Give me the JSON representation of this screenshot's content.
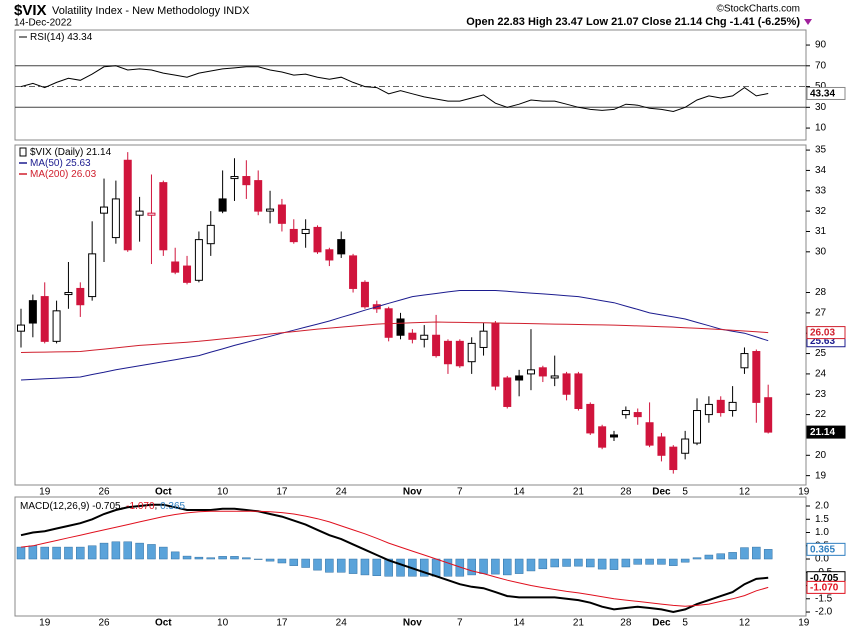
{
  "header": {
    "symbol": "$VIX",
    "name": "Volatility Index - New Methodology INDX",
    "date": "14-Dec-2022",
    "quote": "Open 22.83 High 23.47 Low 21.07 Close 21.14 Chg -1.41 (-6.25%)",
    "credit": "©StockCharts.com"
  },
  "chart_data": [
    {
      "type": "line",
      "ylim": [
        -1.5,
        104.5
      ],
      "yticks": [
        10,
        30,
        50,
        70,
        90
      ],
      "levels": [
        70,
        30
      ],
      "midline": 50,
      "series": [
        {
          "name": "RSI(14)",
          "color": "#000000",
          "values": [
            50,
            53,
            49,
            54,
            58,
            56,
            62,
            69,
            70,
            66,
            67,
            66,
            63,
            61,
            59,
            63,
            65,
            67,
            68,
            69,
            69,
            66,
            64,
            61,
            62,
            59,
            57,
            59,
            54,
            50,
            49,
            43,
            46,
            43,
            40,
            38,
            36,
            36,
            39,
            42,
            34,
            30,
            33,
            37,
            36,
            36,
            33,
            30,
            28,
            27,
            28,
            33,
            32,
            29,
            28,
            26,
            30,
            37,
            41,
            39,
            41,
            49,
            41,
            43.34,
            null,
            null,
            null
          ]
        }
      ]
    },
    {
      "type": "candlestick",
      "name": "$VIX (Daily)",
      "ylim": [
        18.54,
        35.25
      ],
      "yticks": [
        19,
        20,
        22,
        23,
        24,
        25,
        26,
        27,
        28,
        30,
        31,
        32,
        33,
        34,
        35
      ],
      "colors": {
        "up": "#000000",
        "down": "#d0143c"
      },
      "categories": [
        null,
        null,
        "19",
        null,
        null,
        null,
        null,
        "26",
        null,
        null,
        null,
        null,
        "Oct",
        null,
        null,
        null,
        null,
        "10",
        null,
        null,
        null,
        null,
        "17",
        null,
        null,
        null,
        null,
        "24",
        null,
        null,
        null,
        null,
        null,
        "Nov",
        null,
        null,
        null,
        "7",
        null,
        null,
        null,
        null,
        "14",
        null,
        null,
        null,
        null,
        "21",
        null,
        null,
        null,
        "28",
        null,
        null,
        "Dec",
        null,
        "5",
        null,
        null,
        null,
        null,
        "12",
        null,
        null,
        null,
        null,
        "19"
      ],
      "open": [
        26.1,
        27.6,
        27.8,
        25.6,
        27.9,
        28.2,
        27.8,
        31.9,
        30.7,
        34.5,
        31.8,
        31.8,
        33.4,
        29.5,
        29.3,
        28.6,
        30.4,
        32.6,
        33.6,
        33.7,
        33.5,
        32.0,
        32.3,
        31.1,
        30.9,
        31.2,
        30.1,
        30.6,
        29.8,
        28.5,
        27.4,
        27.2,
        26.7,
        26.0,
        25.7,
        25.9,
        25.6,
        25.6,
        24.6,
        25.3,
        26.5,
        23.8,
        23.9,
        24.0,
        24.3,
        23.8,
        24.0,
        24.0,
        22.5,
        21.4,
        21.0,
        22.0,
        22.1,
        21.6,
        20.9,
        20.4,
        20.1,
        20.6,
        22.0,
        22.7,
        22.2,
        24.3,
        25.1,
        22.83,
        null,
        null,
        null
      ],
      "high": [
        27.2,
        27.9,
        28.5,
        27.6,
        29.5,
        28.5,
        31.5,
        33.6,
        33.5,
        34.9,
        32.7,
        33.8,
        33.5,
        30.2,
        29.8,
        31.0,
        32.0,
        34.0,
        34.6,
        34.5,
        34.0,
        33.0,
        32.6,
        31.6,
        31.6,
        31.3,
        30.2,
        31.0,
        29.9,
        28.6,
        27.6,
        27.3,
        27.0,
        26.2,
        26.4,
        26.9,
        25.7,
        25.7,
        25.8,
        26.5,
        26.6,
        23.9,
        24.2,
        26.2,
        24.4,
        24.9,
        24.1,
        24.1,
        22.6,
        21.5,
        21.2,
        22.4,
        22.3,
        22.6,
        21.1,
        20.5,
        21.2,
        22.8,
        22.9,
        22.9,
        23.4,
        25.3,
        25.2,
        23.47,
        null,
        null,
        null
      ],
      "low": [
        25.3,
        25.8,
        25.5,
        25.5,
        27.2,
        26.8,
        27.6,
        29.5,
        30.4,
        30.0,
        30.5,
        29.4,
        29.8,
        28.9,
        28.4,
        28.5,
        29.8,
        31.9,
        32.5,
        32.6,
        31.8,
        31.4,
        31.0,
        30.4,
        30.2,
        29.9,
        29.3,
        29.7,
        28.0,
        27.2,
        27.0,
        25.6,
        25.7,
        25.5,
        25.3,
        24.8,
        24.0,
        24.3,
        24.0,
        24.9,
        23.2,
        22.3,
        22.9,
        23.2,
        23.6,
        23.4,
        22.7,
        22.2,
        21.0,
        20.3,
        20.7,
        21.8,
        21.5,
        20.4,
        19.7,
        19.1,
        19.8,
        20.5,
        21.6,
        21.9,
        21.9,
        24.0,
        21.6,
        21.07,
        null,
        null,
        null
      ],
      "close": [
        26.4,
        26.5,
        25.6,
        27.1,
        28.0,
        27.4,
        29.9,
        32.2,
        32.6,
        30.1,
        32.0,
        31.9,
        30.1,
        29.0,
        28.5,
        30.6,
        31.3,
        32.0,
        33.7,
        33.3,
        32.0,
        32.1,
        31.4,
        30.5,
        31.1,
        30.0,
        29.6,
        29.9,
        28.2,
        27.3,
        27.2,
        25.8,
        25.9,
        25.7,
        25.9,
        24.9,
        24.5,
        24.4,
        25.5,
        26.1,
        23.4,
        22.4,
        23.7,
        24.2,
        23.9,
        23.9,
        23.0,
        22.3,
        21.1,
        20.4,
        20.9,
        22.2,
        21.9,
        20.5,
        20.0,
        19.3,
        20.8,
        22.2,
        22.5,
        22.1,
        22.6,
        25.0,
        22.6,
        21.14,
        null,
        null,
        null
      ],
      "series": [
        {
          "name": "MA(50)",
          "color": "#1c1c8f",
          "values": [
            23.7,
            23.73,
            23.76,
            23.79,
            23.82,
            23.85,
            23.97,
            24.08,
            24.2,
            24.3,
            24.4,
            24.5,
            24.6,
            24.7,
            24.8,
            24.9,
            25.07,
            25.23,
            25.4,
            25.55,
            25.7,
            25.85,
            26.0,
            26.15,
            26.3,
            26.45,
            26.6,
            26.78,
            26.95,
            27.13,
            27.3,
            27.47,
            27.63,
            27.8,
            27.88,
            27.95,
            28.03,
            28.1,
            28.1,
            28.1,
            28.1,
            28.06,
            28.01,
            27.97,
            27.93,
            27.89,
            27.84,
            27.8,
            27.7,
            27.6,
            27.5,
            27.33,
            27.17,
            27.0,
            26.9,
            26.8,
            26.7,
            26.53,
            26.37,
            26.2,
            26.1,
            26.0,
            25.82,
            25.63,
            null,
            null,
            null
          ]
        },
        {
          "name": "MA(200)",
          "color": "#d0202e",
          "values": [
            25.05,
            25.06,
            25.07,
            25.08,
            25.09,
            25.1,
            25.16,
            25.22,
            25.28,
            25.34,
            25.4,
            25.44,
            25.48,
            25.52,
            25.56,
            25.6,
            25.66,
            25.72,
            25.78,
            25.84,
            25.9,
            25.96,
            26.02,
            26.08,
            26.14,
            26.2,
            26.25,
            26.3,
            26.35,
            26.4,
            26.45,
            26.47,
            26.49,
            26.51,
            26.53,
            26.55,
            26.54,
            26.53,
            26.52,
            26.51,
            26.5,
            26.49,
            26.48,
            26.47,
            26.46,
            26.45,
            26.44,
            26.43,
            26.42,
            26.41,
            26.4,
            26.38,
            26.36,
            26.34,
            26.32,
            26.3,
            26.27,
            26.24,
            26.21,
            26.18,
            26.15,
            26.11,
            26.07,
            26.03,
            null,
            null,
            null
          ]
        }
      ]
    },
    {
      "type": "line",
      "legend_title": "MACD(12,26,9)",
      "ylim": [
        -2.15,
        2.34
      ],
      "yticks": [
        {
          "value": 2,
          "label": "2.0"
        },
        1.5,
        {
          "value": 1,
          "label": "1.0"
        },
        0.5,
        {
          "value": 0,
          "label": "0.0"
        },
        -0.5,
        {
          "value": -1,
          "label": "-1.0"
        },
        -1.5,
        {
          "value": -2,
          "label": "-2.0"
        }
      ],
      "categories": [
        null,
        null,
        "19",
        null,
        null,
        null,
        null,
        "26",
        null,
        null,
        null,
        null,
        "Oct",
        null,
        null,
        null,
        null,
        "10",
        null,
        null,
        null,
        null,
        "17",
        null,
        null,
        null,
        null,
        "24",
        null,
        null,
        null,
        null,
        null,
        "Nov",
        null,
        null,
        null,
        "7",
        null,
        null,
        null,
        null,
        "14",
        null,
        null,
        null,
        null,
        "21",
        null,
        null,
        null,
        "28",
        null,
        null,
        "Dec",
        null,
        "5",
        null,
        null,
        null,
        null,
        "12",
        null,
        null,
        null,
        null,
        "19"
      ],
      "series": [
        {
          "type": "bar",
          "color": "#5aa3da",
          "values": [
            0.45,
            0.5,
            0.45,
            0.45,
            0.45,
            0.45,
            0.5,
            0.6,
            0.65,
            0.65,
            0.6,
            0.55,
            0.45,
            0.27,
            0.11,
            0.07,
            0.05,
            0.1,
            0.1,
            0.05,
            0.0,
            -0.08,
            -0.15,
            -0.25,
            -0.32,
            -0.42,
            -0.5,
            -0.5,
            -0.55,
            -0.6,
            -0.63,
            -0.65,
            -0.65,
            -0.65,
            -0.65,
            -0.65,
            -0.65,
            -0.65,
            -0.6,
            -0.55,
            -0.57,
            -0.6,
            -0.55,
            -0.45,
            -0.37,
            -0.3,
            -0.28,
            -0.27,
            -0.3,
            -0.38,
            -0.4,
            -0.3,
            -0.2,
            -0.2,
            -0.2,
            -0.25,
            -0.12,
            0.05,
            0.15,
            0.2,
            0.25,
            0.43,
            0.45,
            0.365,
            null,
            null,
            null
          ]
        },
        {
          "color": "#000000",
          "width": 2,
          "values": [
            0.9,
            1.0,
            1.05,
            1.15,
            1.25,
            1.35,
            1.5,
            1.7,
            1.85,
            1.95,
            2.0,
            2.05,
            2.05,
            1.95,
            1.85,
            1.85,
            1.85,
            1.9,
            1.9,
            1.85,
            1.8,
            1.7,
            1.6,
            1.45,
            1.3,
            1.1,
            0.9,
            0.75,
            0.55,
            0.35,
            0.15,
            -0.05,
            -0.2,
            -0.35,
            -0.5,
            -0.65,
            -0.8,
            -0.95,
            -1.05,
            -1.1,
            -1.25,
            -1.4,
            -1.45,
            -1.45,
            -1.45,
            -1.45,
            -1.5,
            -1.55,
            -1.65,
            -1.8,
            -1.9,
            -1.85,
            -1.8,
            -1.85,
            -1.9,
            -2.0,
            -1.9,
            -1.7,
            -1.55,
            -1.4,
            -1.25,
            -0.95,
            -0.75,
            -0.705,
            null,
            null,
            null
          ]
        },
        {
          "color": "#e0101e",
          "width": 1,
          "values": [
            0.45,
            0.5,
            0.6,
            0.7,
            0.8,
            0.9,
            1.0,
            1.1,
            1.2,
            1.3,
            1.4,
            1.5,
            1.6,
            1.68,
            1.74,
            1.78,
            1.8,
            1.8,
            1.8,
            1.8,
            1.8,
            1.78,
            1.75,
            1.7,
            1.62,
            1.52,
            1.4,
            1.25,
            1.1,
            0.95,
            0.78,
            0.6,
            0.45,
            0.3,
            0.15,
            0.0,
            -0.15,
            -0.3,
            -0.45,
            -0.55,
            -0.68,
            -0.8,
            -0.9,
            -1.0,
            -1.08,
            -1.15,
            -1.22,
            -1.28,
            -1.35,
            -1.42,
            -1.5,
            -1.55,
            -1.6,
            -1.65,
            -1.7,
            -1.75,
            -1.78,
            -1.75,
            -1.7,
            -1.6,
            -1.5,
            -1.38,
            -1.2,
            -1.07,
            null,
            null,
            null
          ],
          "value_labels": [
            null,
            null,
            null,
            null,
            null,
            null,
            null,
            null,
            null,
            null,
            null,
            null,
            null,
            null,
            null,
            null,
            null,
            null,
            null,
            null,
            null,
            null,
            null,
            null,
            null,
            null,
            null,
            null,
            null,
            null,
            null,
            null,
            null,
            null,
            null,
            null,
            null,
            null,
            null,
            null,
            null,
            null,
            null,
            null,
            null,
            null,
            null,
            null,
            null,
            null,
            null,
            null,
            null,
            null,
            null,
            null,
            null,
            null,
            null,
            null,
            null,
            null,
            null,
            "-1.070",
            null,
            null,
            null
          ]
        }
      ]
    }
  ]
}
